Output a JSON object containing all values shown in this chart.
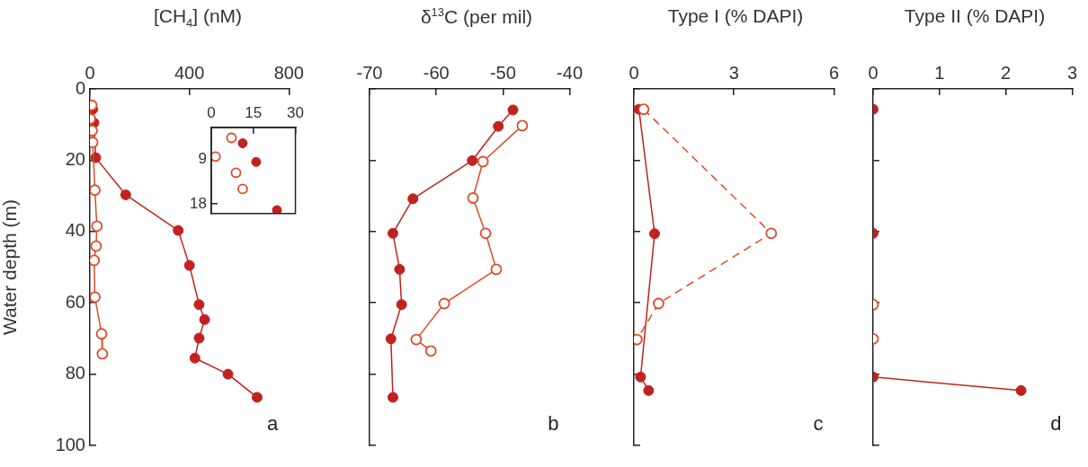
{
  "chart_data": [
    {
      "type": "line",
      "xlabel": "[CH$_{4}$] (nM)",
      "ylabel": "Water depth (m)",
      "xlim": [
        0,
        800
      ],
      "xticks": [
        0,
        400,
        800
      ],
      "ylim": [
        100,
        0
      ],
      "yticks": [
        0,
        20,
        40,
        60,
        80,
        100
      ],
      "marker": "circle",
      "grid": false,
      "annotations": [
        "a"
      ],
      "series": [
        {
          "color": "#c0221f",
          "x": [
            11.2,
            16,
            23.4,
            144,
            355,
            400,
            439,
            461,
            439,
            422,
            555,
            672
          ],
          "values": [
            5.7,
            9.5,
            19.3,
            29.7,
            39.7,
            49.5,
            60.5,
            64.7,
            69.9,
            75.5,
            80,
            86.5
          ]
        },
        {
          "color": "#dc4b2a",
          "x": [
            7.2,
            1.5,
            8.8,
            11.2,
            20,
            28,
            25,
            17,
            20,
            47,
            50
          ],
          "values": [
            4.6,
            8.4,
            11.7,
            15,
            28.4,
            38.5,
            44.1,
            48.1,
            58.4,
            68.7,
            74.3
          ]
        }
      ]
    },
    {
      "type": "scatter",
      "xlim": [
        0,
        30
      ],
      "xticks": [
        0,
        15,
        30
      ],
      "ylim": [
        20,
        2.5
      ],
      "yticks": [
        9,
        18
      ],
      "marker": "circle",
      "grid": false,
      "series": [
        {
          "color": "#c0221f",
          "x": [
            11.2,
            16,
            23.4
          ],
          "values": [
            5.7,
            9.5,
            19.3
          ]
        },
        {
          "color": "#dc4b2a",
          "x": [
            7.2,
            1.5,
            8.8,
            11.2
          ],
          "values": [
            4.6,
            8.4,
            11.7,
            15
          ]
        }
      ]
    },
    {
      "type": "line",
      "xlabel": "δ$^{13}$C (per mil)",
      "xlim": [
        -70,
        -40
      ],
      "xticks": [
        -70,
        -60,
        -50,
        -40
      ],
      "ylim": [
        100,
        0
      ],
      "yticks": [
        0,
        20,
        40,
        60,
        80,
        100
      ],
      "tick_labels": "x",
      "marker": "circle",
      "grid": false,
      "annotations": [
        "b"
      ],
      "series": [
        {
          "color": "#c0221f",
          "x": [
            -48.5,
            -50.7,
            -54.6,
            -63.5,
            -66.5,
            -65.5,
            -65.2,
            -66.8,
            -66.5
          ],
          "values": [
            5.9,
            10.5,
            20.1,
            30.8,
            40.5,
            50.6,
            60.5,
            70.1,
            86.5
          ]
        },
        {
          "color": "#dc4b2a",
          "x": [
            -47.1,
            -53.0,
            -54.5,
            -52.6,
            -51.0,
            -58.8,
            -63.0,
            -60.8
          ],
          "values": [
            10.3,
            20.4,
            30.6,
            40.5,
            50.6,
            60.2,
            70.3,
            73.5
          ]
        }
      ]
    },
    {
      "type": "line",
      "xlabel": "Type I (% DAPI)",
      "xlim": [
        0,
        6
      ],
      "xticks": [
        0,
        3,
        6
      ],
      "ylim": [
        100,
        0
      ],
      "yticks": [
        0,
        20,
        40,
        60,
        80,
        100
      ],
      "tick_labels": "x",
      "marker": "circle",
      "grid": false,
      "annotations": [
        "c"
      ],
      "series": [
        {
          "color": "#c0221f",
          "x": [
            0.15,
            0.62,
            0.2,
            0.44
          ],
          "values": [
            5.7,
            40.6,
            80.8,
            84.6
          ]
        },
        {
          "color": "#dc4b2a",
          "line_style": "dashed",
          "x": [
            0.29,
            4.12,
            0.74,
            0.09
          ],
          "values": [
            5.7,
            40.5,
            60.2,
            70.3
          ]
        }
      ]
    },
    {
      "type": "line",
      "xlabel": "Type II (% DAPI)",
      "xlim": [
        0,
        3
      ],
      "xticks": [
        0,
        1,
        2,
        3
      ],
      "ylim": [
        100,
        0
      ],
      "yticks": [
        0,
        20,
        40,
        60,
        80,
        100
      ],
      "tick_labels": "x",
      "marker": "circle",
      "grid": false,
      "annotations": [
        "d"
      ],
      "series": [
        {
          "color": "#c0221f",
          "x": [
            0,
            0,
            null,
            0,
            2.23
          ],
          "values": [
            5.7,
            40.5,
            null,
            80.8,
            84.6
          ]
        },
        {
          "color": "#dc4b2a",
          "type": "scatter",
          "x": [
            0,
            0
          ],
          "values": [
            60.5,
            70.1
          ]
        }
      ]
    }
  ]
}
